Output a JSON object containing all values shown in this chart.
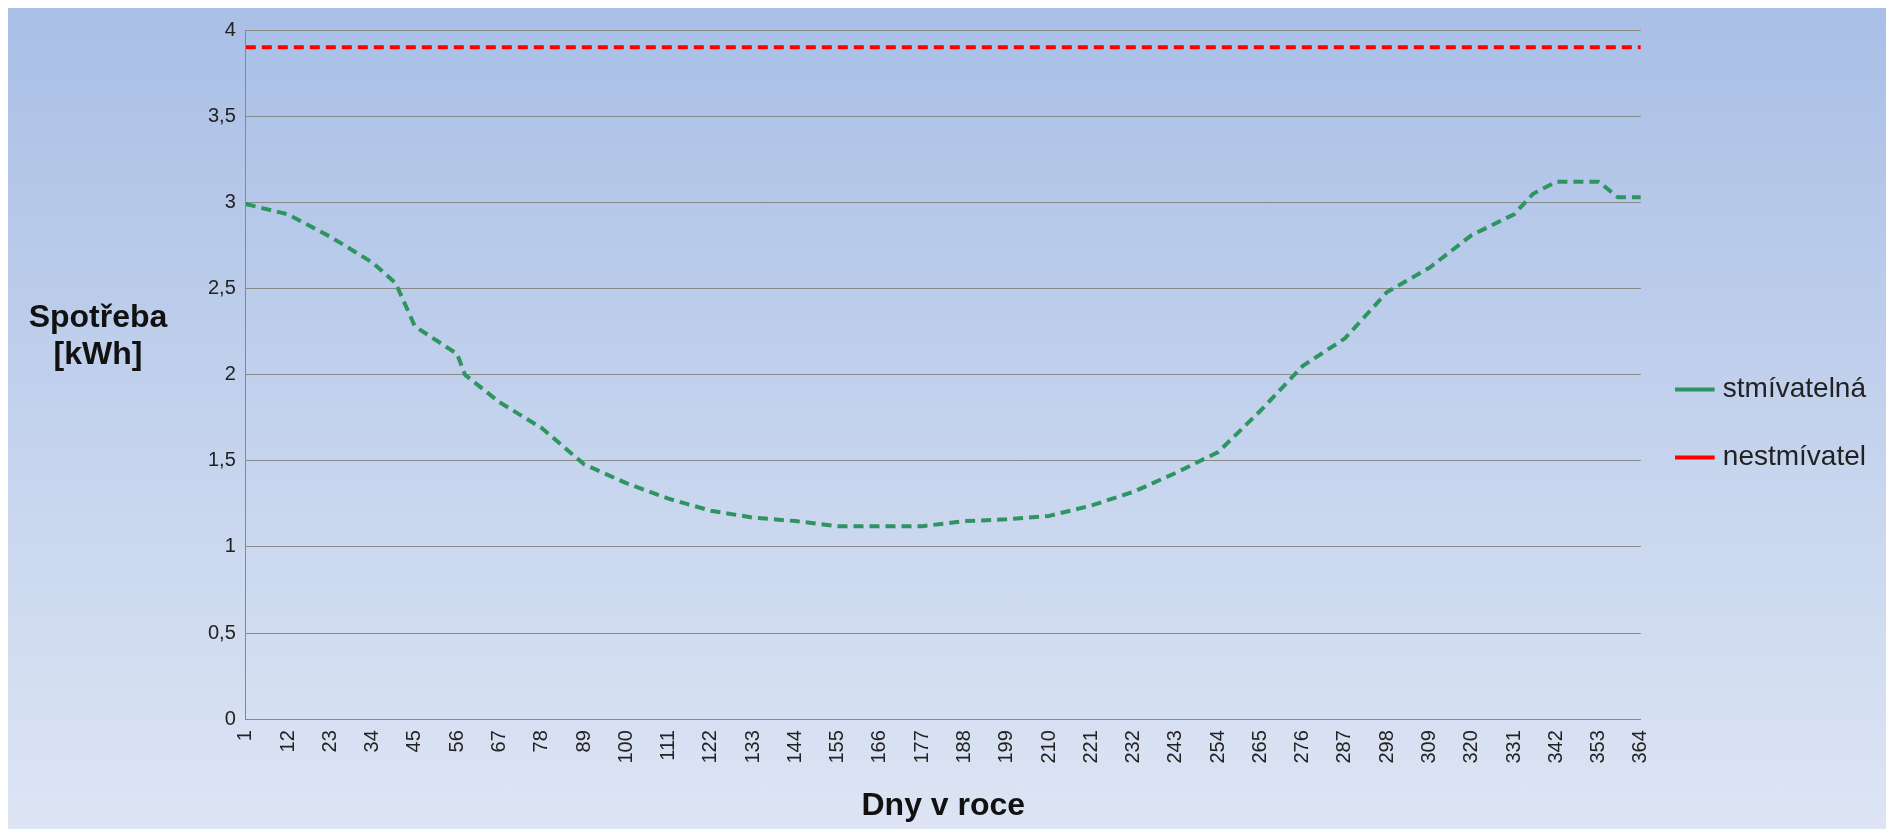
{
  "chart_data": {
    "type": "line",
    "xlabel": "Dny v roce",
    "ylabel": "Spotřeba [kWh]",
    "xlim": [
      1,
      364
    ],
    "xticks": [
      1,
      12,
      23,
      34,
      45,
      56,
      67,
      78,
      89,
      100,
      111,
      122,
      133,
      144,
      155,
      166,
      177,
      188,
      199,
      210,
      221,
      232,
      243,
      254,
      265,
      276,
      287,
      298,
      309,
      320,
      331,
      342,
      353,
      364
    ],
    "ylim": [
      0,
      4
    ],
    "yticks": [
      0,
      {
        "value": 0.5,
        "label": "0,5"
      },
      1,
      {
        "value": 1.5,
        "label": "1,5"
      },
      2,
      {
        "value": 2.5,
        "label": "2,5"
      },
      3,
      {
        "value": 3.5,
        "label": "3,5"
      },
      4
    ],
    "grid": "y",
    "legend": "right",
    "line_style": "dashed",
    "marker": "none",
    "series": [
      {
        "name": "stmívatelná",
        "color": "#2e9460",
        "x": [
          1,
          12,
          23,
          34,
          40,
          45,
          56,
          58,
          67,
          78,
          89,
          100,
          111,
          122,
          133,
          144,
          155,
          166,
          177,
          188,
          199,
          210,
          221,
          232,
          243,
          254,
          265,
          276,
          287,
          298,
          309,
          320,
          331,
          336,
          342,
          353,
          358,
          364
        ],
        "values": [
          2.99,
          2.93,
          2.8,
          2.65,
          2.53,
          2.28,
          2.12,
          2.0,
          1.84,
          1.69,
          1.48,
          1.37,
          1.28,
          1.21,
          1.17,
          1.15,
          1.12,
          1.12,
          1.12,
          1.15,
          1.16,
          1.18,
          1.24,
          1.32,
          1.43,
          1.55,
          1.79,
          2.05,
          2.21,
          2.48,
          2.62,
          2.81,
          2.93,
          3.05,
          3.12,
          3.12,
          3.03,
          3.03
        ]
      },
      {
        "name": "nestmívatel",
        "color": "#ff0000",
        "x": [
          1,
          364
        ],
        "values": [
          3.9,
          3.9
        ]
      }
    ]
  }
}
